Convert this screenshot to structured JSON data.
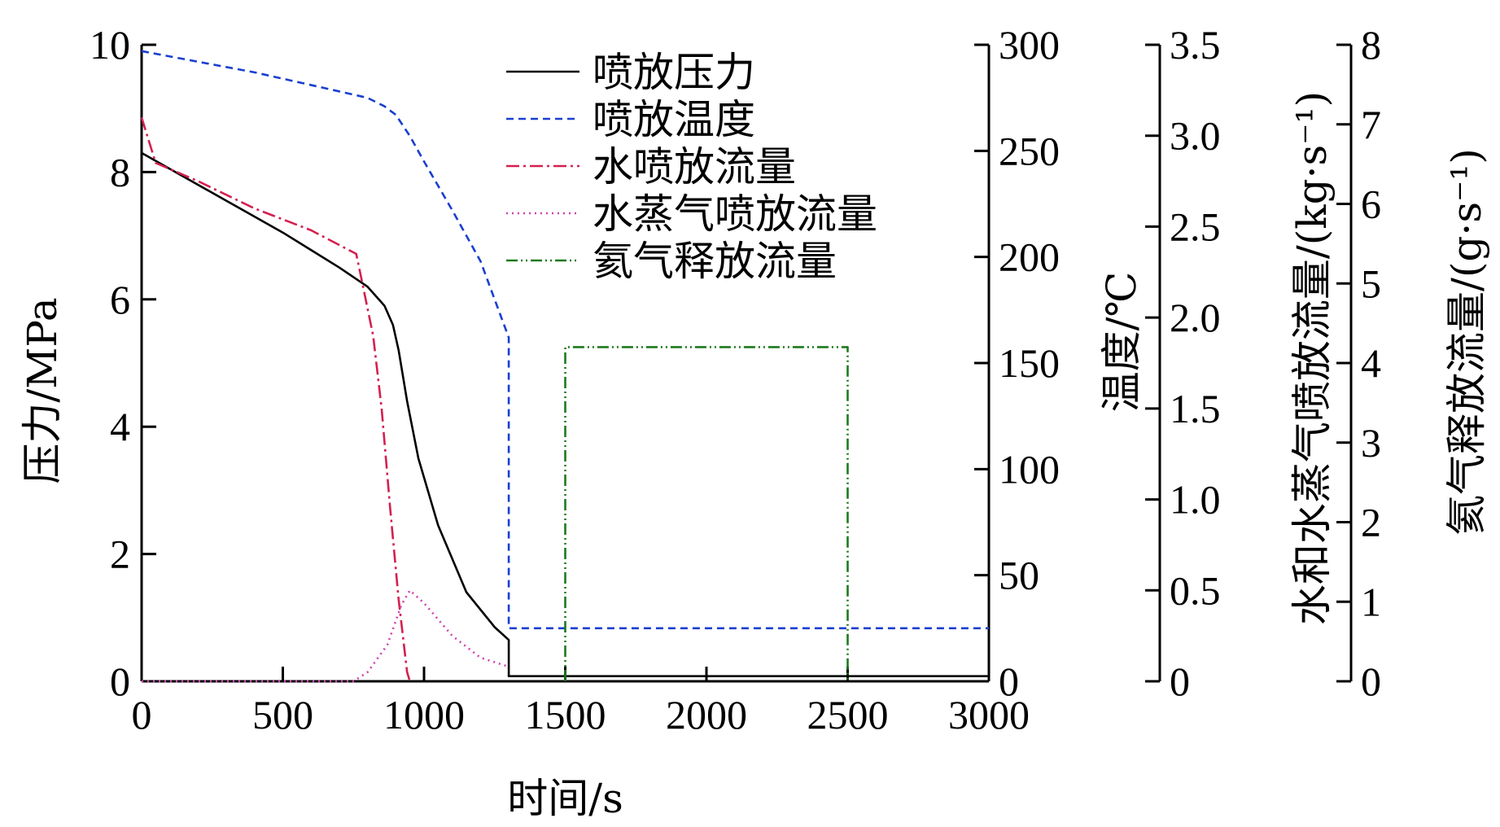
{
  "chart_data": {
    "type": "line",
    "x_axis": {
      "label": "时间/s",
      "range": [
        0,
        3000
      ],
      "ticks": [
        "0",
        "500",
        "1000",
        "1500",
        "2000",
        "2500",
        "3000"
      ]
    },
    "y_axes": [
      {
        "id": "pressure",
        "label": "压力/MPa",
        "side": "left",
        "range": [
          0,
          10
        ],
        "ticks": [
          "0",
          "2",
          "4",
          "6",
          "8",
          "10"
        ]
      },
      {
        "id": "temperature",
        "label": "温度/℃",
        "side": "right",
        "range": [
          0,
          300
        ],
        "ticks": [
          "0",
          "50",
          "100",
          "150",
          "200",
          "250",
          "300"
        ]
      },
      {
        "id": "water_flow",
        "label": "水和水蒸气喷放流量/(kg·s⁻¹)",
        "side": "right",
        "range": [
          0,
          3.5
        ],
        "ticks": [
          "0",
          "0.5",
          "1.0",
          "1.5",
          "2.0",
          "2.5",
          "3.0",
          "3.5"
        ]
      },
      {
        "id": "helium_flow",
        "label": "氦气释放流量/(g·s⁻¹)",
        "side": "right",
        "range": [
          0,
          8
        ],
        "ticks": [
          "0",
          "1",
          "2",
          "3",
          "4",
          "5",
          "6",
          "7",
          "8"
        ]
      }
    ],
    "legend_position": "top-center",
    "grid": false,
    "series": [
      {
        "name": "喷放压力",
        "axis": "pressure",
        "color": "#000000",
        "dash": "solid",
        "points": [
          [
            0,
            8.3
          ],
          [
            100,
            8.05
          ],
          [
            300,
            7.55
          ],
          [
            500,
            7.05
          ],
          [
            700,
            6.5
          ],
          [
            800,
            6.2
          ],
          [
            860,
            5.9
          ],
          [
            890,
            5.6
          ],
          [
            910,
            5.2
          ],
          [
            940,
            4.4
          ],
          [
            980,
            3.5
          ],
          [
            1050,
            2.45
          ],
          [
            1150,
            1.4
          ],
          [
            1250,
            0.85
          ],
          [
            1300,
            0.65
          ],
          [
            1300,
            0.08
          ],
          [
            3000,
            0.08
          ]
        ]
      },
      {
        "name": "喷放温度",
        "axis": "temperature",
        "color": "#1a3fd0",
        "dash": "dashed",
        "points": [
          [
            0,
            297
          ],
          [
            400,
            287
          ],
          [
            700,
            278
          ],
          [
            800,
            275
          ],
          [
            860,
            271
          ],
          [
            900,
            267
          ],
          [
            950,
            257
          ],
          [
            1000,
            245
          ],
          [
            1100,
            222
          ],
          [
            1200,
            198
          ],
          [
            1300,
            162
          ],
          [
            1300,
            25
          ],
          [
            3000,
            25
          ]
        ]
      },
      {
        "name": "水喷放流量",
        "axis": "water_flow",
        "color": "#d42050",
        "dash": "dashdot",
        "points": [
          [
            0,
            3.1
          ],
          [
            50,
            2.85
          ],
          [
            200,
            2.75
          ],
          [
            400,
            2.6
          ],
          [
            600,
            2.48
          ],
          [
            760,
            2.35
          ],
          [
            780,
            2.2
          ],
          [
            820,
            1.9
          ],
          [
            850,
            1.5
          ],
          [
            880,
            0.95
          ],
          [
            910,
            0.45
          ],
          [
            940,
            0.05
          ],
          [
            950,
            0
          ]
        ]
      },
      {
        "name": "水蒸气喷放流量",
        "axis": "water_flow",
        "color": "#d040b0",
        "dash": "dotted",
        "points": [
          [
            0,
            0
          ],
          [
            750,
            0
          ],
          [
            800,
            0.05
          ],
          [
            870,
            0.2
          ],
          [
            920,
            0.42
          ],
          [
            950,
            0.5
          ],
          [
            1000,
            0.43
          ],
          [
            1100,
            0.25
          ],
          [
            1200,
            0.13
          ],
          [
            1300,
            0.08
          ]
        ]
      },
      {
        "name": "氦气释放流量",
        "axis": "helium_flow",
        "color": "#1e7a1e",
        "dash": "dashdotdot",
        "points": [
          [
            1500,
            0
          ],
          [
            1500,
            4.2
          ],
          [
            2500,
            4.2
          ],
          [
            2500,
            0
          ]
        ]
      }
    ]
  }
}
